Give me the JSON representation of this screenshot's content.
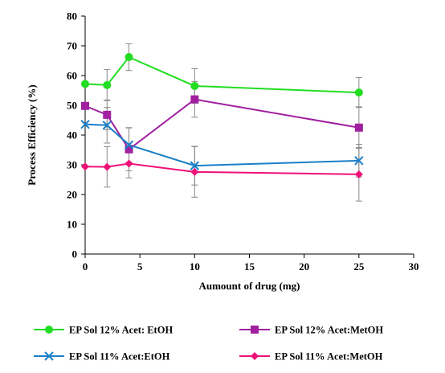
{
  "chart_data": {
    "type": "line",
    "xlabel": "Aumount of drug (mg)",
    "ylabel": "Process Efficiency (%)",
    "xlim": [
      0,
      30
    ],
    "ylim": [
      0,
      80
    ],
    "xticks": [
      0,
      5,
      10,
      15,
      20,
      25,
      30
    ],
    "yticks": [
      0,
      10,
      20,
      30,
      40,
      50,
      60,
      70,
      80
    ],
    "x": [
      0,
      2,
      4,
      10,
      25
    ],
    "grid": false,
    "legend_position": "bottom",
    "series": [
      {
        "name": "EP Sol 12% Acet: EtOH",
        "color": "#22dd22",
        "marker": "circle",
        "values": [
          57.2,
          56.8,
          66.2,
          56.5,
          54.3
        ],
        "errors": [
          0,
          5.2,
          4.5,
          5.8,
          5.0
        ]
      },
      {
        "name": "EP Sol 12% Acet:MetOH",
        "color": "#a020a0",
        "marker": "square",
        "values": [
          49.8,
          46.8,
          35.2,
          52.0,
          42.5
        ],
        "errors": [
          0,
          5.0,
          7.2,
          6.0,
          7.0
        ]
      },
      {
        "name": "EP Sol 11% Acet:EtOH",
        "color": "#1a80c8",
        "marker": "x",
        "values": [
          43.6,
          43.3,
          36.7,
          29.7,
          31.4
        ],
        "errors": [
          0,
          6.0,
          5.8,
          6.5,
          5.5
        ]
      },
      {
        "name": "EP Sol 11% Acet:MetOH",
        "color": "#ee1177",
        "marker": "diamond",
        "values": [
          29.4,
          29.3,
          30.4,
          27.6,
          26.8
        ],
        "errors": [
          0,
          6.8,
          4.8,
          8.5,
          9.0
        ]
      }
    ]
  }
}
